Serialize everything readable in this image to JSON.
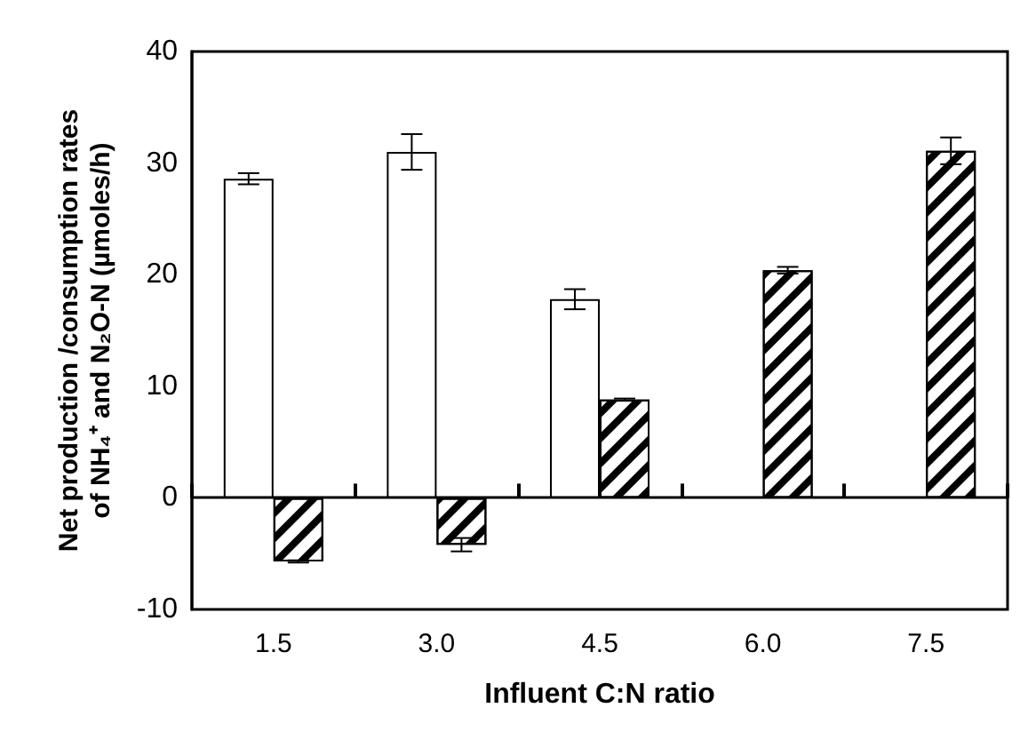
{
  "chart_data": {
    "type": "bar",
    "xlabel": "Influent C:N ratio",
    "ylabel": "Net production /consumption rates of NH₄⁺ and N₂O-N (µmoles/h)",
    "categories": [
      "1.5",
      "3.0",
      "4.5",
      "6.0",
      "7.5"
    ],
    "series": [
      {
        "color": "#ffffff",
        "values": [
          28.6,
          31.0,
          17.8,
          null,
          null
        ],
        "errors": [
          0.5,
          1.6,
          0.9,
          null,
          null
        ]
      },
      {
        "color": "#000000",
        "values": [
          -5.7,
          -4.2,
          8.8,
          20.4,
          31.1
        ],
        "errors": [
          0.1,
          0.6,
          0.1,
          0.3,
          1.2
        ]
      }
    ],
    "ylim": [
      -10,
      40
    ],
    "yticks": [
      -10,
      0,
      10,
      20,
      30,
      40
    ]
  }
}
